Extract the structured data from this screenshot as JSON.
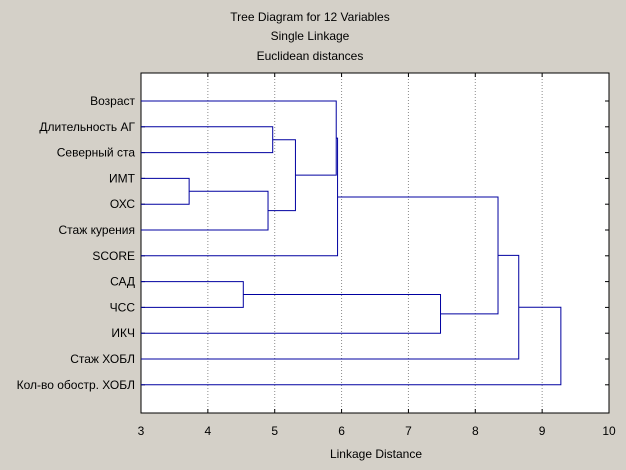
{
  "chart_data": {
    "type": "dendrogram",
    "title": "Tree Diagram for 12  Variables",
    "subtitle_1": "Single Linkage",
    "subtitle_2": "Euclidean distances",
    "xlabel": "Linkage Distance",
    "xlim": [
      3,
      10
    ],
    "xticks": [
      3,
      4,
      5,
      6,
      7,
      8,
      9,
      10
    ],
    "grid": true,
    "leaves": [
      "Возраст",
      "Длительность АГ",
      "Северный ста",
      "ИМТ",
      "ОХС",
      "Стаж курения",
      "SCORE",
      "САД",
      "ЧСС",
      "ИКЧ",
      "Стаж ХОБЛ",
      "Кол-во обостр. ХОБЛ"
    ],
    "merges": [
      {
        "a": "ИМТ",
        "b": "ОХС",
        "distance": 3.72
      },
      {
        "a": "САД",
        "b": "ЧСС",
        "distance": 4.53
      },
      {
        "a": "{ИМТ, ОХС}",
        "b": "Стаж курения",
        "distance": 4.9
      },
      {
        "a": "Длительность АГ",
        "b": "Северный ста",
        "distance": 4.97
      },
      {
        "a": "{Длительность АГ, Северный ста}",
        "b": "{ИМТ, ОХС, Стаж курения}",
        "distance": 5.31
      },
      {
        "a": "Возраст",
        "b": "{Длительность АГ … Стаж курения}",
        "distance": 5.92
      },
      {
        "a": "{Возраст … Стаж курения}",
        "b": "SCORE",
        "distance": 5.94
      },
      {
        "a": "{САД, ЧСС}",
        "b": "ИКЧ",
        "distance": 7.48
      },
      {
        "a": "{Возраст … SCORE}",
        "b": "{САД, ЧСС, ИКЧ}",
        "distance": 8.34
      },
      {
        "a": "{Возраст … ИКЧ}",
        "b": "Стаж ХОБЛ",
        "distance": 8.65
      },
      {
        "a": "{Возраст … Стаж ХОБЛ}",
        "b": "Кол-во обостр. ХОБЛ",
        "distance": 9.28
      }
    ],
    "colors": {
      "background": "#d4d0c8",
      "plot_area": "#ffffff",
      "branch": "#0000a0",
      "grid": "#8c8c8c"
    }
  }
}
